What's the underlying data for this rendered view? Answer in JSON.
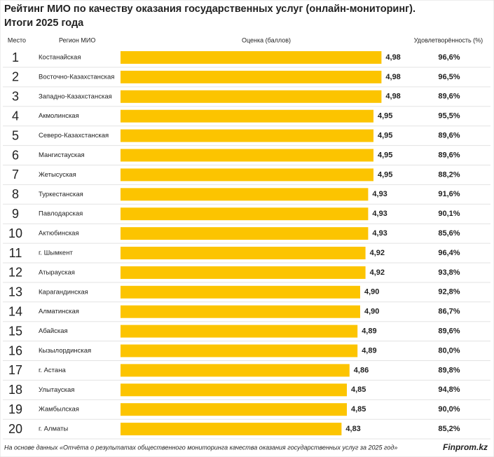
{
  "chart_data": {
    "type": "bar",
    "title": "Рейтинг МИО по качеству оказания государственных услуг (онлайн-мониторинг).",
    "subtitle": "Итоги 2025 года",
    "columns": [
      "Место",
      "Регион МИО",
      "Оценка (баллов)",
      "Удовлетворённость (%)"
    ],
    "ranks": [
      1,
      2,
      3,
      4,
      5,
      6,
      7,
      8,
      9,
      10,
      11,
      12,
      13,
      14,
      15,
      16,
      17,
      18,
      19,
      20
    ],
    "categories": [
      "Костанайская",
      "Восточно-Казахстанская",
      "Западно-Казахстанская",
      "Акмолинская",
      "Северо-Казахстанская",
      "Мангистауская",
      "Жетысуская",
      "Туркестанская",
      "Павлодарская",
      "Актюбинская",
      "г. Шымкент",
      "Атырауская",
      "Карагандинская",
      "Алматинская",
      "Абайская",
      "Кызылординская",
      "г. Астана",
      "Улытауская",
      "Жамбылская",
      "г. Алматы"
    ],
    "values": [
      4.98,
      4.98,
      4.98,
      4.95,
      4.95,
      4.95,
      4.95,
      4.93,
      4.93,
      4.93,
      4.92,
      4.92,
      4.9,
      4.9,
      4.89,
      4.89,
      4.86,
      4.85,
      4.85,
      4.83
    ],
    "value_labels": [
      "4,98",
      "4,98",
      "4,98",
      "4,95",
      "4,95",
      "4,95",
      "4,95",
      "4,93",
      "4,93",
      "4,93",
      "4,92",
      "4,92",
      "4,90",
      "4,90",
      "4,89",
      "4,89",
      "4,86",
      "4,85",
      "4,85",
      "4,83"
    ],
    "color": "#fcc400",
    "xlim": [
      4,
      5
    ],
    "satisfaction": {
      "values": [
        96.6,
        96.5,
        89.6,
        95.5,
        89.6,
        89.6,
        88.2,
        91.6,
        90.1,
        85.6,
        96.4,
        93.8,
        92.8,
        86.7,
        89.6,
        80.0,
        89.8,
        94.8,
        90.0,
        85.2
      ],
      "value_labels": [
        "96,6%",
        "96,5%",
        "89,6%",
        "95,5%",
        "89,6%",
        "89,6%",
        "88,2%",
        "91,6%",
        "90,1%",
        "85,6%",
        "96,4%",
        "93,8%",
        "92,8%",
        "86,7%",
        "89,6%",
        "80,0%",
        "89,8%",
        "94,8%",
        "90,0%",
        "85,2%"
      ]
    },
    "source": "На основе данных «Отчёта о результатах общественного мониторинга качества оказания государственных услуг за 2025 год»",
    "brand": "Finprom.kz"
  }
}
